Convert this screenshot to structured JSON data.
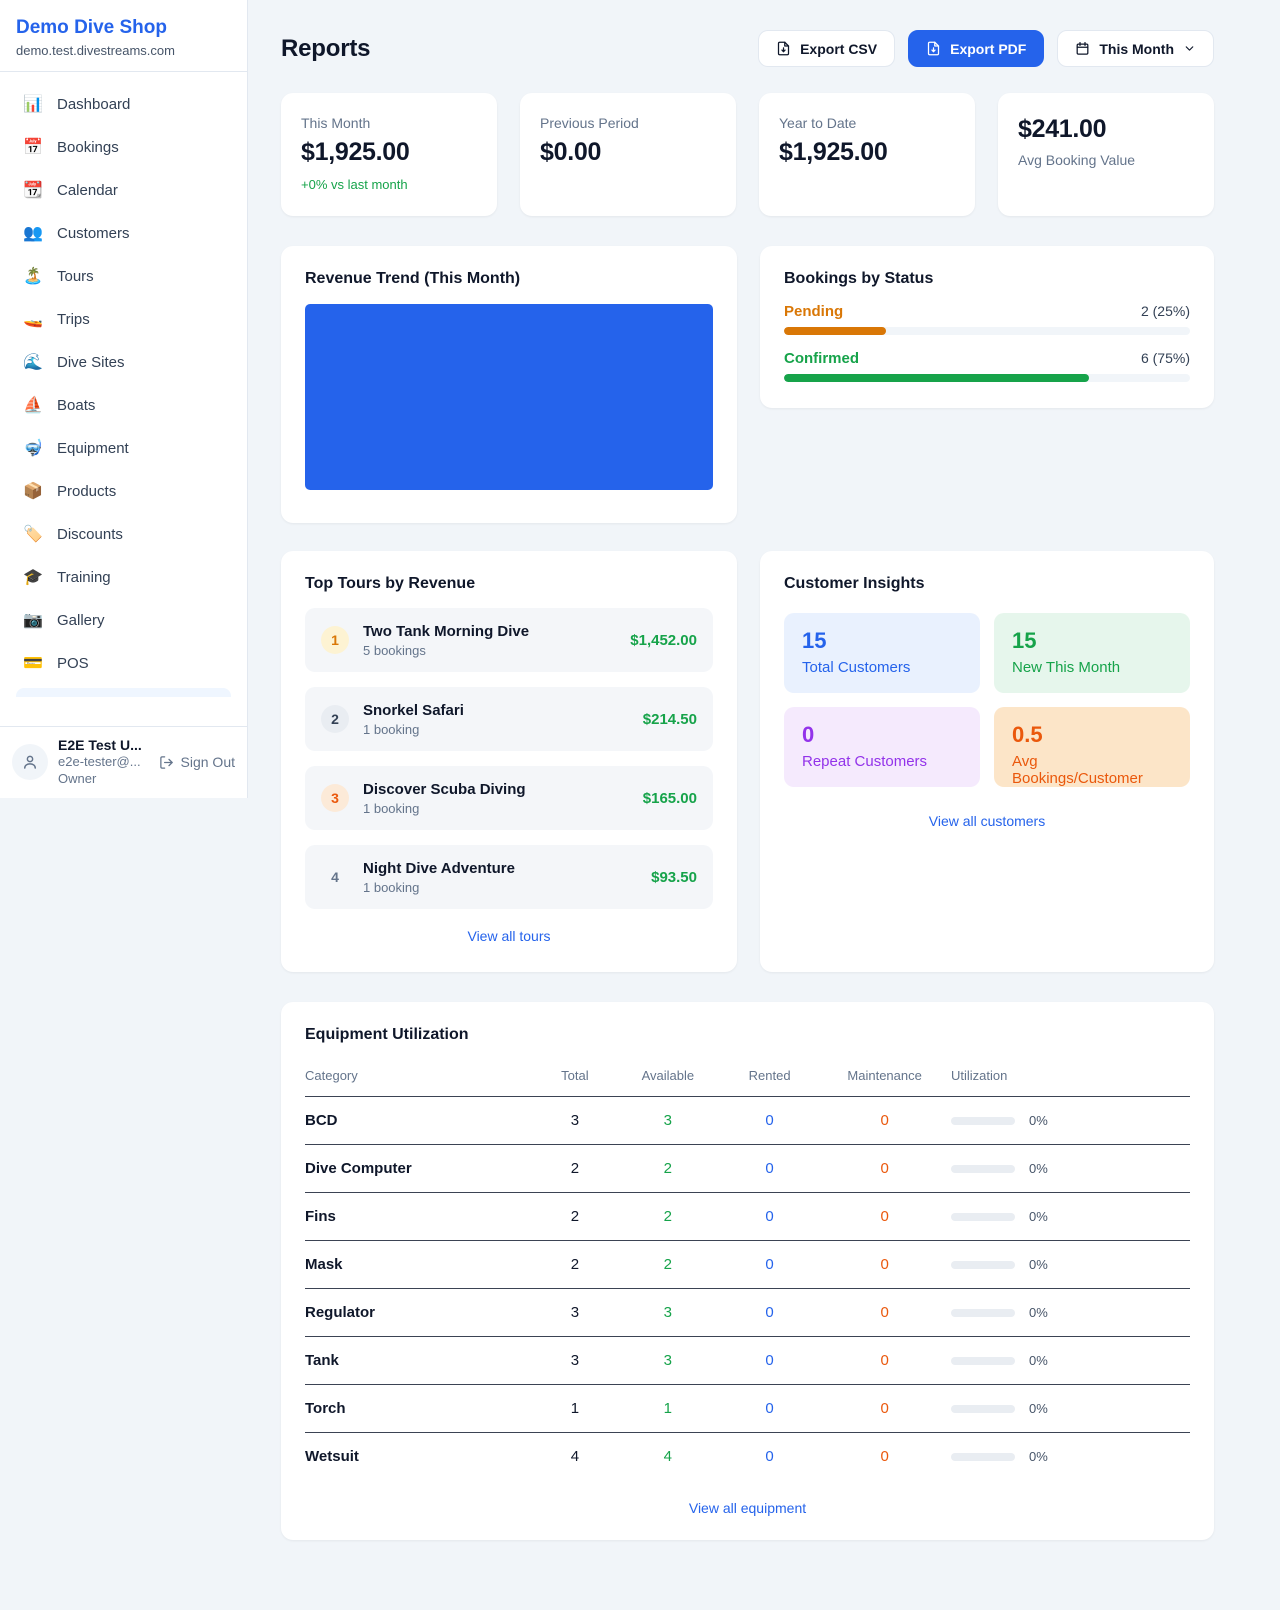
{
  "colors": {
    "primary_blue": "#2563eb",
    "success_green": "#16a34a",
    "pending_orange": "#d97706",
    "deep_orange": "#ea580c",
    "purple": "#9333ea",
    "page_bg": "#f1f5f9",
    "card_bg": "#ffffff"
  },
  "sidebar": {
    "shop_name": "Demo Dive Shop",
    "shop_domain": "demo.test.divestreams.com",
    "items": [
      {
        "icon": "📊",
        "label": "Dashboard"
      },
      {
        "icon": "📅",
        "label": "Bookings"
      },
      {
        "icon": "📆",
        "label": "Calendar"
      },
      {
        "icon": "👥",
        "label": "Customers"
      },
      {
        "icon": "🏝️",
        "label": "Tours"
      },
      {
        "icon": "🚤",
        "label": "Trips"
      },
      {
        "icon": "🌊",
        "label": "Dive Sites"
      },
      {
        "icon": "⛵",
        "label": "Boats"
      },
      {
        "icon": "🤿",
        "label": "Equipment"
      },
      {
        "icon": "📦",
        "label": "Products"
      },
      {
        "icon": "🏷️",
        "label": "Discounts"
      },
      {
        "icon": "🎓",
        "label": "Training"
      },
      {
        "icon": "📷",
        "label": "Gallery"
      },
      {
        "icon": "💳",
        "label": "POS"
      }
    ],
    "user": {
      "name": "E2E Test U...",
      "email": "e2e-tester@...",
      "role": "Owner",
      "sign_out_label": "Sign Out"
    }
  },
  "header": {
    "title": "Reports",
    "export_csv_label": "Export CSV",
    "export_pdf_label": "Export PDF",
    "period_label": "This Month"
  },
  "stats": {
    "this_month": {
      "label": "This Month",
      "value": "$1,925.00",
      "delta": "+0% vs last month"
    },
    "previous_period": {
      "label": "Previous Period",
      "value": "$0.00"
    },
    "year_to_date": {
      "label": "Year to Date",
      "value": "$1,925.00"
    },
    "avg_booking": {
      "value": "$241.00",
      "label": "Avg Booking Value"
    }
  },
  "revenue_trend": {
    "title": "Revenue Trend (This Month)",
    "bar_color": "#2563eb"
  },
  "bookings_by_status": {
    "title": "Bookings by Status",
    "rows": [
      {
        "label": "Pending",
        "count_text": "2 (25%)",
        "percent": 25
      },
      {
        "label": "Confirmed",
        "count_text": "6 (75%)",
        "percent": 75
      }
    ]
  },
  "top_tours": {
    "title": "Top Tours by Revenue",
    "items": [
      {
        "rank": "1",
        "name": "Two Tank Morning Dive",
        "bookings": "5 bookings",
        "revenue": "$1,452.00"
      },
      {
        "rank": "2",
        "name": "Snorkel Safari",
        "bookings": "1 booking",
        "revenue": "$214.50"
      },
      {
        "rank": "3",
        "name": "Discover Scuba Diving",
        "bookings": "1 booking",
        "revenue": "$165.00"
      },
      {
        "rank": "4",
        "name": "Night Dive Adventure",
        "bookings": "1 booking",
        "revenue": "$93.50"
      }
    ],
    "view_all_label": "View all tours"
  },
  "customer_insights": {
    "title": "Customer Insights",
    "tiles": [
      {
        "value": "15",
        "label": "Total Customers"
      },
      {
        "value": "15",
        "label": "New This Month"
      },
      {
        "value": "0",
        "label": "Repeat Customers"
      },
      {
        "value": "0.5",
        "label": "Avg Bookings/Customer"
      }
    ],
    "view_all_label": "View all customers"
  },
  "equipment": {
    "title": "Equipment Utilization",
    "columns": [
      "Category",
      "Total",
      "Available",
      "Rented",
      "Maintenance",
      "Utilization"
    ],
    "rows": [
      {
        "category": "BCD",
        "total": "3",
        "available": "3",
        "rented": "0",
        "maintenance": "0",
        "utilization": "0%",
        "utilization_percent": 0
      },
      {
        "category": "Dive Computer",
        "total": "2",
        "available": "2",
        "rented": "0",
        "maintenance": "0",
        "utilization": "0%",
        "utilization_percent": 0
      },
      {
        "category": "Fins",
        "total": "2",
        "available": "2",
        "rented": "0",
        "maintenance": "0",
        "utilization": "0%",
        "utilization_percent": 0
      },
      {
        "category": "Mask",
        "total": "2",
        "available": "2",
        "rented": "0",
        "maintenance": "0",
        "utilization": "0%",
        "utilization_percent": 0
      },
      {
        "category": "Regulator",
        "total": "3",
        "available": "3",
        "rented": "0",
        "maintenance": "0",
        "utilization": "0%",
        "utilization_percent": 0
      },
      {
        "category": "Tank",
        "total": "3",
        "available": "3",
        "rented": "0",
        "maintenance": "0",
        "utilization": "0%",
        "utilization_percent": 0
      },
      {
        "category": "Torch",
        "total": "1",
        "available": "1",
        "rented": "0",
        "maintenance": "0",
        "utilization": "0%",
        "utilization_percent": 0
      },
      {
        "category": "Wetsuit",
        "total": "4",
        "available": "4",
        "rented": "0",
        "maintenance": "0",
        "utilization": "0%",
        "utilization_percent": 0
      }
    ],
    "view_all_label": "View all equipment"
  }
}
